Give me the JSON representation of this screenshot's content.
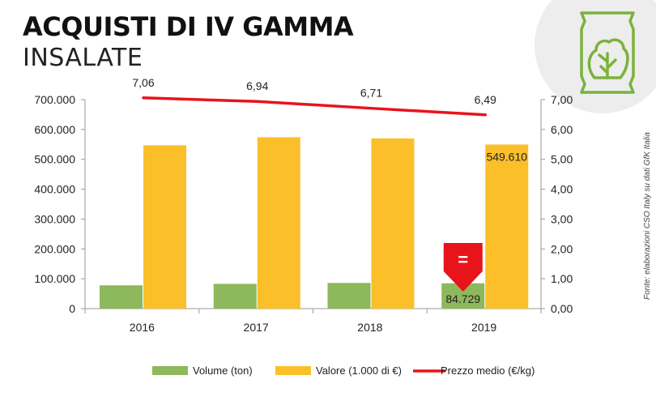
{
  "header": {
    "title": "ACQUISTI DI IV GAMMA",
    "subtitle": "INSALATE"
  },
  "source_note": "Fonte: elaborazioni CSO Italy su dati GfK Italia",
  "icon": "salad-bag-icon",
  "colors": {
    "volume": "#8db85b",
    "valore": "#fbbf2a",
    "prezzo": "#e8141b",
    "badge": "#e8141b",
    "icon_stroke": "#7bb23c",
    "icon_bg": "#ededed"
  },
  "badge": {
    "symbol": "="
  },
  "chart_data": {
    "type": "bar",
    "categories": [
      "2016",
      "2017",
      "2018",
      "2019"
    ],
    "series": [
      {
        "name": "Volume (ton)",
        "type": "bar",
        "axis": "left",
        "values": [
          78000,
          83000,
          86000,
          84729
        ]
      },
      {
        "name": "Valore (1.000 di €)",
        "type": "bar",
        "axis": "left",
        "values": [
          547000,
          574000,
          570000,
          549610
        ]
      },
      {
        "name": "Prezzo medio (€/kg)",
        "type": "line",
        "axis": "right",
        "values": [
          7.06,
          6.94,
          6.71,
          6.49
        ]
      }
    ],
    "left_axis": {
      "ylim": [
        0,
        700000
      ],
      "ticks": [
        "0",
        "100.000",
        "200.000",
        "300.000",
        "400.000",
        "500.000",
        "600.000",
        "700.000"
      ]
    },
    "right_axis": {
      "ylim": [
        0,
        7
      ],
      "ticks": [
        "0,00",
        "1,00",
        "2,00",
        "3,00",
        "4,00",
        "5,00",
        "6,00",
        "7,00"
      ]
    },
    "line_labels": [
      "7,06",
      "6,94",
      "6,71",
      "6,49"
    ],
    "value_labels": {
      "volume_2019": "84.729",
      "valore_2019": "549.610"
    },
    "legend": [
      "Volume (ton)",
      "Valore (1.000 di €)",
      "Prezzo medio (€/kg)"
    ],
    "legend_position": "bottom",
    "grid": false
  }
}
